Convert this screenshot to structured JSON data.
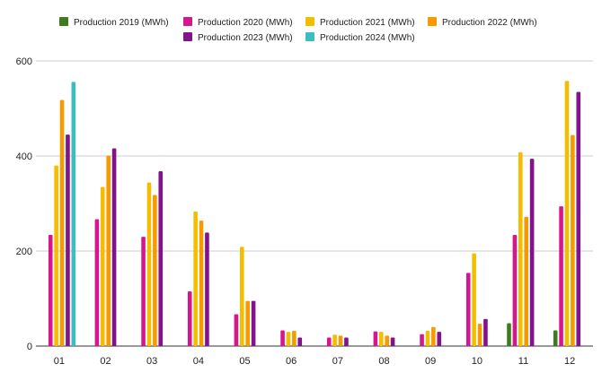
{
  "chart_data": {
    "type": "bar",
    "title": "",
    "xlabel": "",
    "ylabel": "",
    "ylim": [
      0,
      600
    ],
    "yticks": [
      0,
      200,
      400,
      600
    ],
    "grid": true,
    "legend_position": "top",
    "categories": [
      "01",
      "02",
      "03",
      "04",
      "05",
      "06",
      "07",
      "08",
      "09",
      "10",
      "11",
      "12"
    ],
    "series": [
      {
        "name": "Production 2019 (MWh)",
        "color": "#3d7a22",
        "values": [
          null,
          null,
          null,
          null,
          null,
          null,
          null,
          null,
          null,
          null,
          48,
          33
        ]
      },
      {
        "name": "Production 2020 (MWh)",
        "color": "#d6168e",
        "values": [
          234,
          267,
          230,
          115,
          67,
          33,
          18,
          31,
          25,
          154,
          234,
          294
        ]
      },
      {
        "name": "Production 2021 (MWh)",
        "color": "#f5bd00",
        "values": [
          380,
          335,
          344,
          283,
          209,
          30,
          24,
          30,
          32,
          195,
          408,
          558
        ]
      },
      {
        "name": "Production 2022 (MWh)",
        "color": "#f79a00",
        "values": [
          518,
          401,
          318,
          264,
          95,
          32,
          22,
          22,
          40,
          47,
          272,
          444
        ]
      },
      {
        "name": "Production 2023 (MWh)",
        "color": "#82138c",
        "values": [
          445,
          416,
          368,
          239,
          95,
          18,
          18,
          18,
          30,
          57,
          394,
          535
        ]
      },
      {
        "name": "Production 2024 (MWh)",
        "color": "#3dbdc2",
        "values": [
          556,
          null,
          null,
          null,
          null,
          null,
          null,
          null,
          null,
          null,
          null,
          null
        ]
      }
    ]
  }
}
